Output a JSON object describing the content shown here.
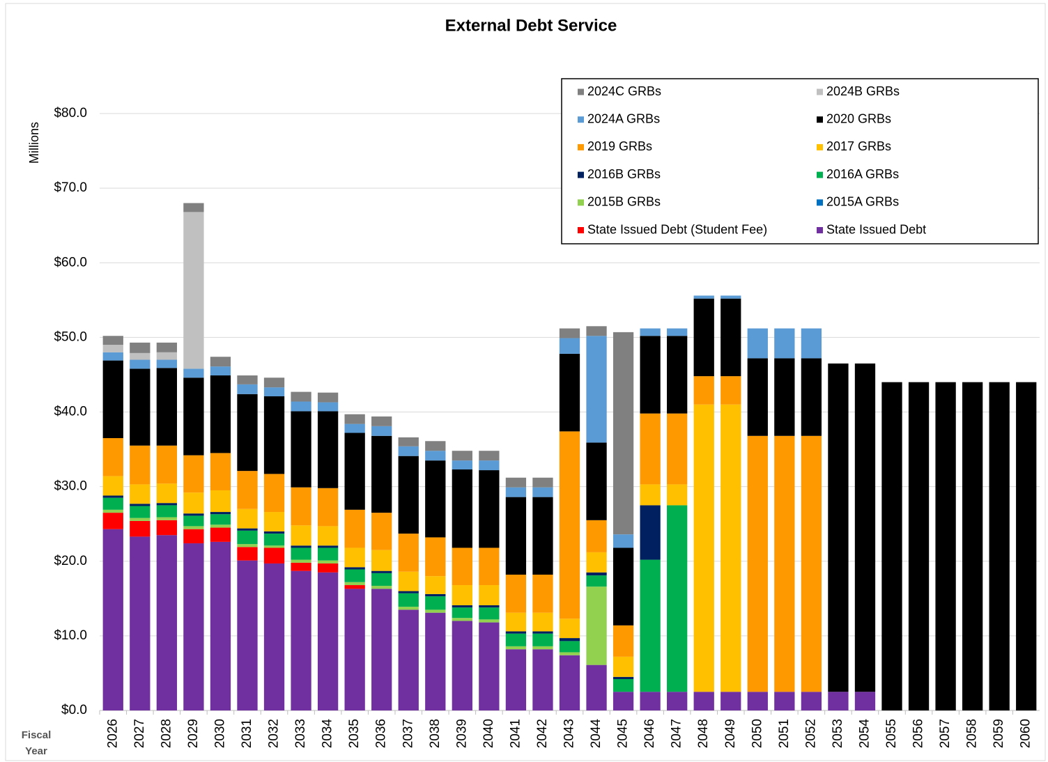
{
  "chart_data": {
    "type": "stacked_bar",
    "title": "External Debt Service",
    "y_label": "Millions",
    "x_label": "Fiscal Year",
    "categories": [
      "2026",
      "2027",
      "2028",
      "2029",
      "2030",
      "2031",
      "2032",
      "2033",
      "2034",
      "2035",
      "2036",
      "2037",
      "2038",
      "2039",
      "2040",
      "2041",
      "2042",
      "2043",
      "2044",
      "2045",
      "2046",
      "2047",
      "2048",
      "2049",
      "2050",
      "2051",
      "2052",
      "2053",
      "2054",
      "2055",
      "2056",
      "2057",
      "2058",
      "2059",
      "2060"
    ],
    "ylim": [
      0,
      80
    ],
    "yticks": [
      {
        "value": 0,
        "label": "$0.0"
      },
      {
        "value": 10,
        "label": "$10.0"
      },
      {
        "value": 20,
        "label": "$20.0"
      },
      {
        "value": 30,
        "label": "$30.0"
      },
      {
        "value": 40,
        "label": "$40.0"
      },
      {
        "value": 50,
        "label": "$50.0"
      },
      {
        "value": 60,
        "label": "$60.0"
      },
      {
        "value": 70,
        "label": "$70.0"
      },
      {
        "value": 80,
        "label": "$80.0"
      }
    ],
    "grid": true,
    "legend": "top-right",
    "series": [
      {
        "name": "State Issued Debt",
        "color": "#7030a0",
        "values": [
          24.3,
          23.3,
          23.5,
          22.4,
          22.6,
          20.1,
          19.7,
          18.7,
          18.5,
          16.3,
          16.3,
          13.5,
          13.1,
          12.0,
          11.8,
          8.2,
          8.2,
          7.4,
          6.1,
          2.5,
          2.5,
          2.5,
          2.5,
          2.5,
          2.5,
          2.5,
          2.5,
          2.5,
          2.5,
          0,
          0,
          0,
          0,
          0,
          0
        ]
      },
      {
        "name": "State Issued Debt (Student Fee)",
        "color": "#ff0000",
        "values": [
          2.2,
          2.1,
          2.0,
          1.9,
          1.9,
          1.8,
          2.1,
          1.1,
          1.2,
          0.5,
          0,
          0,
          0,
          0,
          0,
          0,
          0,
          0,
          0,
          0,
          0,
          0,
          0,
          0,
          0,
          0,
          0,
          0,
          0,
          0,
          0,
          0,
          0,
          0,
          0
        ]
      },
      {
        "name": "2015A GRBs",
        "color": "#0070c0",
        "values": [
          0,
          0,
          0,
          0,
          0,
          0,
          0,
          0,
          0,
          0,
          0,
          0,
          0,
          0,
          0,
          0,
          0,
          0,
          0,
          0,
          0,
          0,
          0,
          0,
          0,
          0,
          0,
          0,
          0,
          0,
          0,
          0,
          0,
          0,
          0
        ]
      },
      {
        "name": "2015B GRBs",
        "color": "#92d050",
        "values": [
          0.4,
          0.4,
          0.4,
          0.4,
          0.4,
          0.4,
          0.3,
          0.4,
          0.4,
          0.4,
          0.4,
          0.4,
          0.4,
          0.4,
          0.4,
          0.4,
          0.4,
          0.4,
          10.5,
          0,
          0,
          0,
          0,
          0,
          0,
          0,
          0,
          0,
          0,
          0,
          0,
          0,
          0,
          0,
          0
        ]
      },
      {
        "name": "2016A GRBs",
        "color": "#00b050",
        "values": [
          1.6,
          1.6,
          1.6,
          1.4,
          1.4,
          1.8,
          1.6,
          1.6,
          1.7,
          1.7,
          1.7,
          1.8,
          1.8,
          1.4,
          1.6,
          1.7,
          1.7,
          1.5,
          1.5,
          1.7,
          17.7,
          25.0,
          0,
          0,
          0,
          0,
          0,
          0,
          0,
          0,
          0,
          0,
          0,
          0,
          0
        ]
      },
      {
        "name": "2016B GRBs",
        "color": "#002060",
        "values": [
          0.3,
          0.3,
          0.3,
          0.3,
          0.3,
          0.3,
          0.3,
          0.3,
          0.3,
          0.3,
          0.3,
          0.3,
          0.3,
          0.3,
          0.3,
          0.3,
          0.3,
          0.4,
          0.4,
          0.3,
          7.3,
          0,
          0,
          0,
          0,
          0,
          0,
          0,
          0,
          0,
          0,
          0,
          0,
          0,
          0
        ]
      },
      {
        "name": "2017 GRBs",
        "color": "#ffc000",
        "values": [
          2.6,
          2.6,
          2.6,
          2.8,
          2.9,
          2.6,
          2.6,
          2.7,
          2.6,
          2.6,
          2.8,
          2.6,
          2.4,
          2.7,
          2.7,
          2.5,
          2.5,
          2.6,
          2.7,
          2.7,
          2.8,
          2.8,
          38.5,
          38.5,
          0,
          0,
          0,
          0,
          0,
          0,
          0,
          0,
          0,
          0,
          0
        ]
      },
      {
        "name": "2019 GRBs",
        "color": "#ff9900",
        "values": [
          5.1,
          5.2,
          5.1,
          5.0,
          5.0,
          5.1,
          5.1,
          5.1,
          5.1,
          5.1,
          5.0,
          5.1,
          5.2,
          5.0,
          5.0,
          5.1,
          5.1,
          25.1,
          4.3,
          4.2,
          9.5,
          9.5,
          3.8,
          3.8,
          34.3,
          34.3,
          34.3,
          0,
          0,
          0,
          0,
          0,
          0,
          0,
          0
        ]
      },
      {
        "name": "2020 GRBs",
        "color": "#000000",
        "values": [
          10.4,
          10.3,
          10.4,
          10.4,
          10.4,
          10.3,
          10.4,
          10.2,
          10.3,
          10.3,
          10.3,
          10.4,
          10.3,
          10.5,
          10.4,
          10.4,
          10.4,
          10.4,
          10.4,
          10.4,
          10.4,
          10.4,
          10.4,
          10.4,
          10.4,
          10.4,
          10.4,
          44.0,
          44.0,
          44.0,
          44.0,
          44.0,
          44.0,
          44.0,
          44.0
        ]
      },
      {
        "name": "2024A GRBs",
        "color": "#5b9bd5",
        "values": [
          1.1,
          1.2,
          1.1,
          1.2,
          1.2,
          1.3,
          1.2,
          1.3,
          1.2,
          1.2,
          1.3,
          1.3,
          1.3,
          1.2,
          1.3,
          1.3,
          1.3,
          2.1,
          14.3,
          1.8,
          1.0,
          1.0,
          0.4,
          0.4,
          4.0,
          4.0,
          4.0,
          0,
          0,
          0,
          0,
          0,
          0,
          0,
          0
        ]
      },
      {
        "name": "2024B GRBs",
        "color": "#c0c0c0",
        "values": [
          1.0,
          0.9,
          1.0,
          21.0,
          0,
          0,
          0,
          0,
          0,
          0,
          0,
          0,
          0,
          0,
          0,
          0,
          0,
          0,
          0,
          0,
          0,
          0,
          0,
          0,
          0,
          0,
          0,
          0,
          0,
          0,
          0,
          0,
          0,
          0,
          0
        ]
      },
      {
        "name": "2024C GRBs",
        "color": "#808080",
        "values": [
          1.2,
          1.4,
          1.3,
          1.2,
          1.3,
          1.2,
          1.3,
          1.3,
          1.3,
          1.3,
          1.3,
          1.2,
          1.3,
          1.3,
          1.3,
          1.3,
          1.3,
          1.3,
          1.3,
          27.1,
          0,
          0,
          0,
          0,
          0,
          0,
          0,
          0,
          0,
          0,
          0,
          0,
          0,
          0,
          0
        ]
      }
    ]
  }
}
